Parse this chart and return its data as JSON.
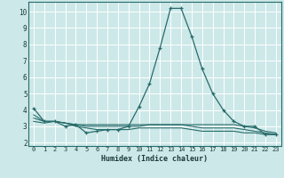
{
  "xlabel": "Humidex (Indice chaleur)",
  "xlim": [
    -0.5,
    23.5
  ],
  "ylim": [
    1.8,
    10.6
  ],
  "yticks": [
    2,
    3,
    4,
    5,
    6,
    7,
    8,
    9,
    10
  ],
  "xticks": [
    0,
    1,
    2,
    3,
    4,
    5,
    6,
    7,
    8,
    9,
    10,
    11,
    12,
    13,
    14,
    15,
    16,
    17,
    18,
    19,
    20,
    21,
    22,
    23
  ],
  "bg_color": "#cde8e8",
  "grid_color": "#ffffff",
  "line_color": "#276b6b",
  "lines": [
    {
      "x": [
        0,
        1,
        2,
        3,
        4,
        5,
        6,
        7,
        8,
        9,
        10,
        11,
        12,
        13,
        14,
        15,
        16,
        17,
        18,
        19,
        20,
        21,
        22,
        23
      ],
      "y": [
        4.1,
        3.3,
        3.3,
        3.0,
        3.1,
        2.6,
        2.7,
        2.8,
        2.8,
        3.0,
        4.2,
        5.6,
        7.8,
        10.2,
        10.2,
        8.5,
        6.5,
        5.0,
        4.0,
        3.3,
        3.0,
        3.0,
        2.5,
        2.5
      ],
      "marker": true
    },
    {
      "x": [
        0,
        1,
        2,
        3,
        4,
        5,
        6,
        7,
        8,
        9,
        10,
        11,
        12,
        13,
        14,
        15,
        16,
        17,
        18,
        19,
        20,
        21,
        22,
        23
      ],
      "y": [
        3.5,
        3.3,
        3.3,
        3.2,
        3.1,
        3.1,
        3.1,
        3.1,
        3.1,
        3.1,
        3.1,
        3.1,
        3.1,
        3.1,
        3.1,
        3.1,
        3.1,
        3.1,
        3.1,
        3.1,
        3.0,
        2.9,
        2.7,
        2.6
      ],
      "marker": false
    },
    {
      "x": [
        0,
        1,
        2,
        3,
        4,
        5,
        6,
        7,
        8,
        9,
        10,
        11,
        12,
        13,
        14,
        15,
        16,
        17,
        18,
        19,
        20,
        21,
        22,
        23
      ],
      "y": [
        3.3,
        3.2,
        3.3,
        3.2,
        3.0,
        2.9,
        2.8,
        2.8,
        2.8,
        2.8,
        2.9,
        2.9,
        2.9,
        2.9,
        2.9,
        2.8,
        2.7,
        2.7,
        2.7,
        2.7,
        2.6,
        2.6,
        2.5,
        2.5
      ],
      "marker": false
    },
    {
      "x": [
        0,
        1,
        2,
        3,
        4,
        5,
        6,
        7,
        8,
        9,
        10,
        11,
        12,
        13,
        14,
        15,
        16,
        17,
        18,
        19,
        20,
        21,
        22,
        23
      ],
      "y": [
        3.7,
        3.3,
        3.3,
        3.2,
        3.1,
        3.0,
        3.0,
        3.0,
        3.0,
        3.0,
        3.0,
        3.1,
        3.1,
        3.1,
        3.1,
        3.0,
        2.9,
        2.9,
        2.9,
        2.9,
        2.8,
        2.7,
        2.6,
        2.5
      ],
      "marker": false
    }
  ]
}
